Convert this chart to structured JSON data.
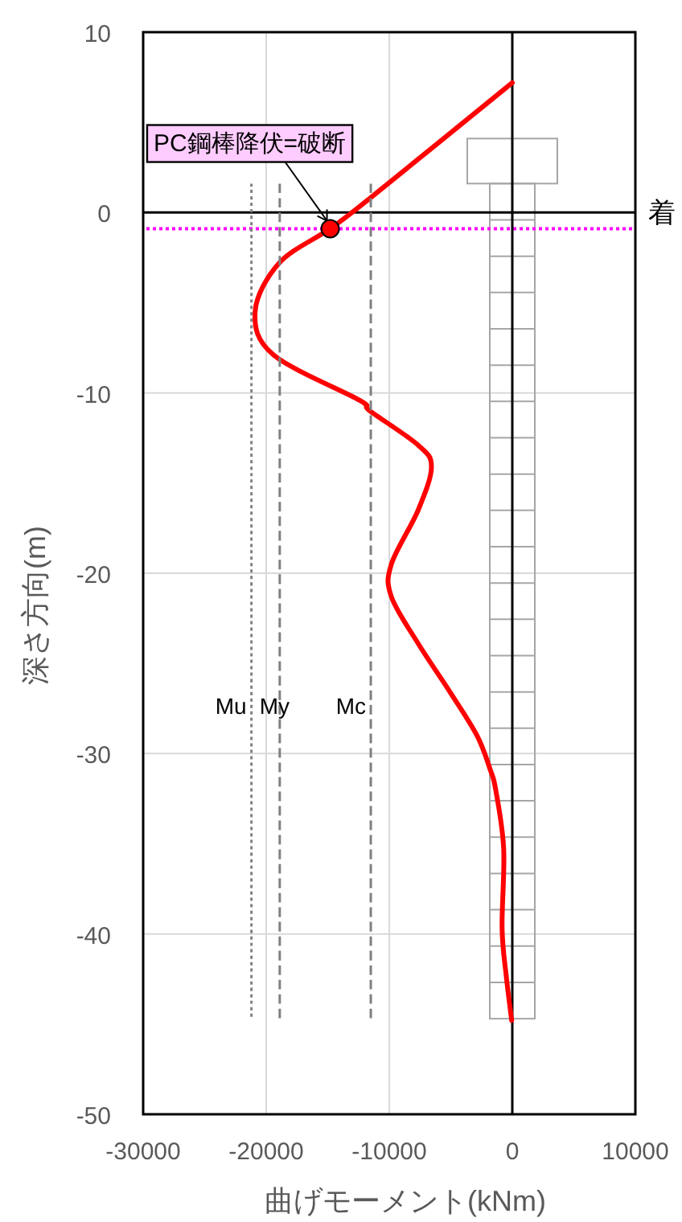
{
  "chart_data": {
    "type": "line",
    "xlabel": "曲げモーメント(kNm)",
    "ylabel": "深さ方向(m)",
    "xlim": [
      -30000,
      10000
    ],
    "xticks": [
      -30000,
      -20000,
      -10000,
      0,
      10000
    ],
    "ylim": [
      -50,
      10
    ],
    "yticks": [
      -50,
      -40,
      -30,
      -20,
      -10,
      0,
      10
    ],
    "grid": true,
    "series": [
      {
        "color": "#ff0000",
        "line_style": "solid",
        "x": [
          0,
          -11550,
          -14820,
          -18950,
          -20900,
          -19400,
          -12440,
          -11570,
          -7650,
          -6570,
          -7650,
          -9830,
          -9830,
          -7650,
          -5050,
          -2870,
          -1790,
          -1350,
          -700,
          -830,
          -480,
          -50
        ],
        "values": [
          7.2,
          0.8,
          -0.9,
          -2.8,
          -5.5,
          -7.9,
          -10.4,
          -11.0,
          -12.9,
          -14.1,
          -16.5,
          -19.5,
          -21.3,
          -23.9,
          -26.6,
          -29.0,
          -30.9,
          -32.0,
          -35.3,
          -39.7,
          -42.4,
          -44.8
        ]
      },
      {
        "type": "line",
        "name": "Mu",
        "color": "#808080",
        "line_style": "dotted",
        "x": [
          -21200,
          -21200
        ],
        "values": [
          1.6,
          -44.7
        ]
      },
      {
        "type": "line",
        "name": "My",
        "color": "#808080",
        "line_style": "dashed",
        "x": [
          -18900,
          -18900
        ],
        "values": [
          1.6,
          -44.7
        ]
      },
      {
        "type": "line",
        "name": "Mc",
        "color": "#808080",
        "line_style": "dashed",
        "x": [
          -11500,
          -11500
        ],
        "values": [
          1.6,
          -44.7
        ]
      },
      {
        "type": "scatter",
        "color": "#ff0000",
        "marker": "circle",
        "x": [
          -14800
        ],
        "values": [
          -0.9
        ]
      }
    ],
    "ref_lines": [
      {
        "axis": "y",
        "value": -0.9,
        "color": "#ff00ff",
        "line_style": "dotted"
      }
    ],
    "annotations": [
      {
        "text": "PC鋼棒降伏=破断",
        "x": -14800,
        "y": -0.9
      },
      "着"
    ]
  }
}
